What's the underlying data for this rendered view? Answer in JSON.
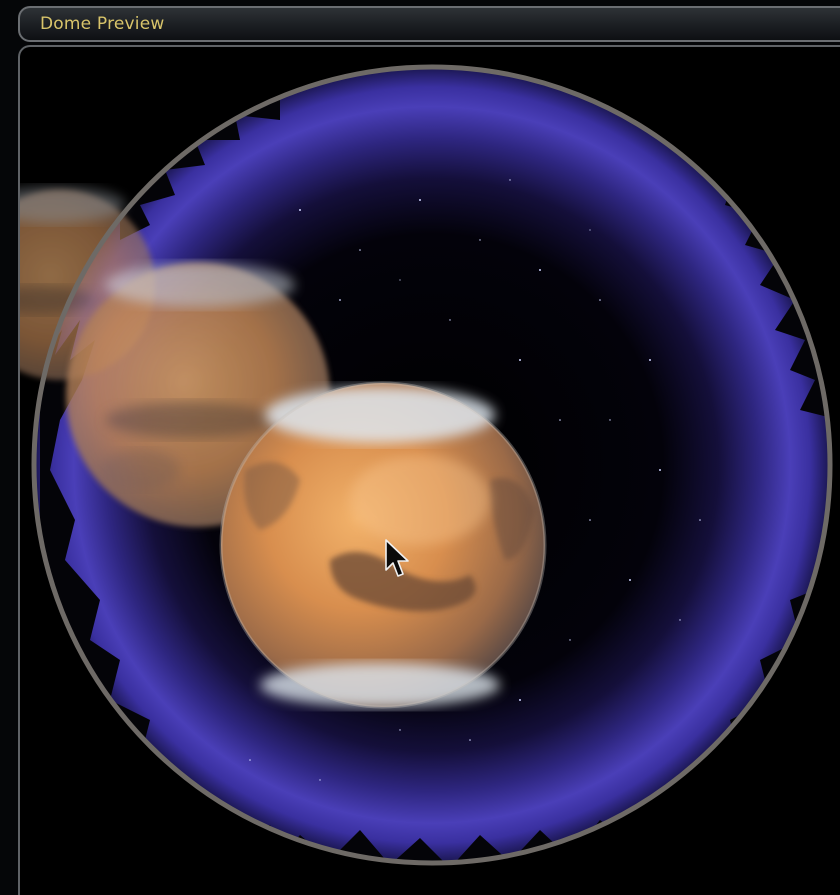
{
  "window": {
    "title": "Dome Preview"
  },
  "dome": {
    "scene": "dome-fisheye-view",
    "ring_color": "#6e6a66",
    "sky_glow_color": "#4a3fb8",
    "planet_color": "#d48a4a",
    "cursor_icon": "arrow-cursor-icon"
  }
}
